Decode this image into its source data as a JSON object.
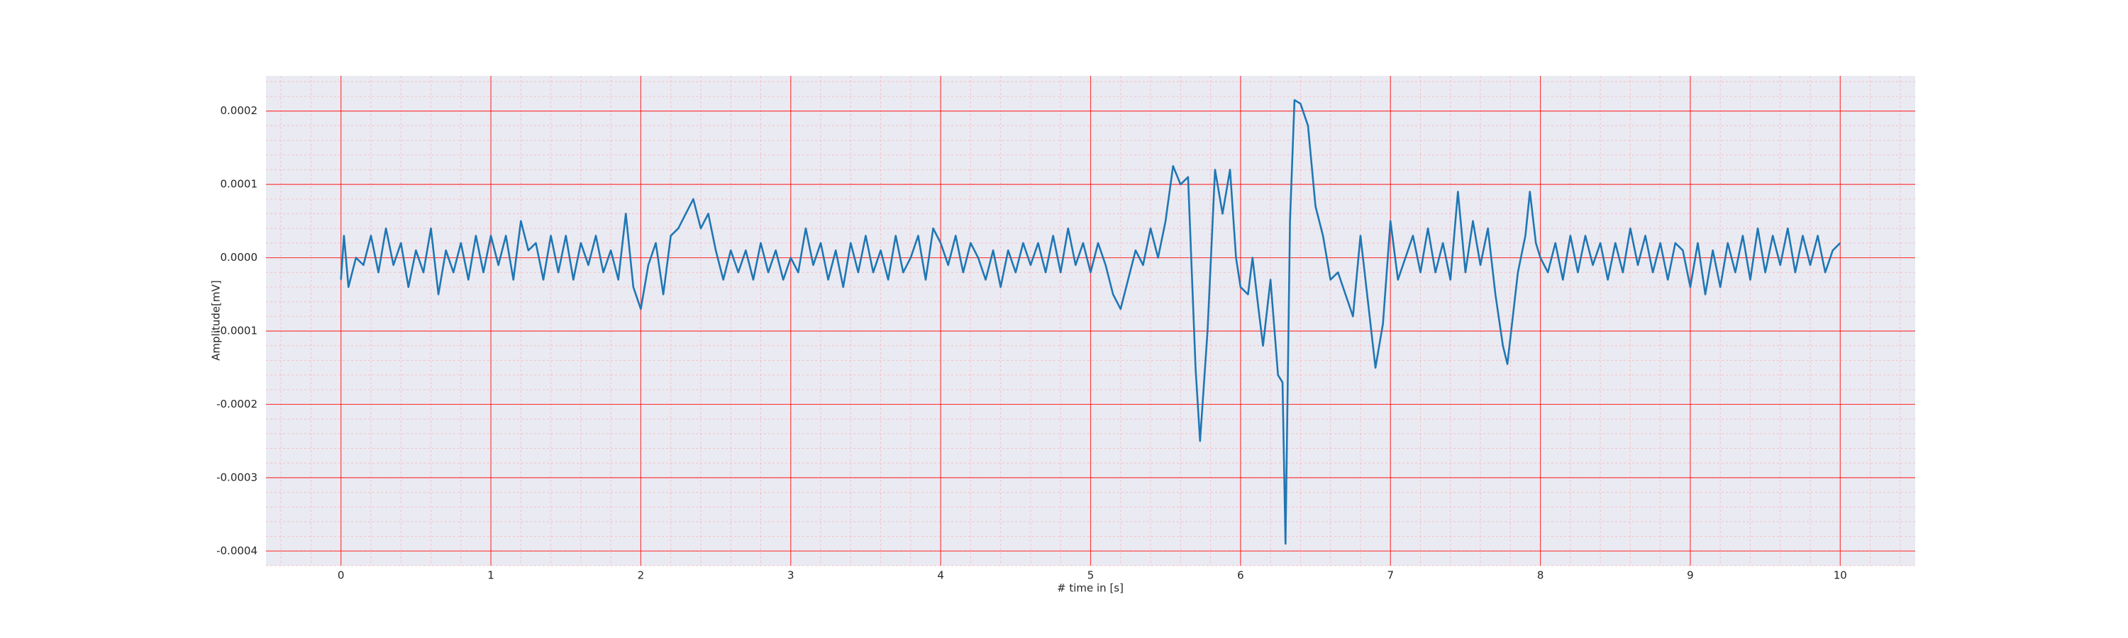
{
  "chart_data": {
    "type": "line",
    "xlabel": "# time in [s]",
    "ylabel": "Amplitude[mV]",
    "color": "#1f77b4",
    "grid": true,
    "minor_grid": {
      "xstep": 0.2,
      "ystep": 2e-05
    },
    "xlim": [
      -0.5,
      10.5
    ],
    "xticks": [
      0,
      1,
      2,
      3,
      4,
      5,
      6,
      7,
      8,
      9,
      10
    ],
    "ylim": [
      -0.00042,
      0.000248
    ],
    "yticks": [
      0.0002,
      0.0001,
      {
        "value": 0,
        "label": "0.0000"
      },
      -0.0001,
      -0.0002,
      -0.0003,
      -0.0004
    ],
    "x": [
      0,
      0.02,
      0.05,
      0.1,
      0.15,
      0.2,
      0.25,
      0.3,
      0.35,
      0.4,
      0.45,
      0.5,
      0.55,
      0.6,
      0.65,
      0.7,
      0.75,
      0.8,
      0.85,
      0.9,
      0.95,
      1.0,
      1.05,
      1.1,
      1.15,
      1.2,
      1.25,
      1.3,
      1.35,
      1.4,
      1.45,
      1.5,
      1.55,
      1.6,
      1.65,
      1.7,
      1.75,
      1.8,
      1.85,
      1.9,
      1.95,
      2.0,
      2.05,
      2.1,
      2.15,
      2.2,
      2.25,
      2.3,
      2.35,
      2.4,
      2.45,
      2.5,
      2.55,
      2.6,
      2.65,
      2.7,
      2.75,
      2.8,
      2.85,
      2.9,
      2.95,
      3.0,
      3.05,
      3.1,
      3.15,
      3.2,
      3.25,
      3.3,
      3.35,
      3.4,
      3.45,
      3.5,
      3.55,
      3.6,
      3.65,
      3.7,
      3.75,
      3.8,
      3.85,
      3.9,
      3.95,
      4.0,
      4.05,
      4.1,
      4.15,
      4.2,
      4.25,
      4.3,
      4.35,
      4.4,
      4.45,
      4.5,
      4.55,
      4.6,
      4.65,
      4.7,
      4.75,
      4.8,
      4.85,
      4.9,
      4.95,
      5.0,
      5.05,
      5.1,
      5.15,
      5.2,
      5.25,
      5.3,
      5.35,
      5.4,
      5.45,
      5.5,
      5.55,
      5.6,
      5.65,
      5.7,
      5.73,
      5.78,
      5.83,
      5.88,
      5.93,
      5.97,
      6.0,
      6.05,
      6.08,
      6.12,
      6.15,
      6.2,
      6.25,
      6.28,
      6.3,
      6.33,
      6.36,
      6.4,
      6.45,
      6.5,
      6.55,
      6.6,
      6.65,
      6.7,
      6.75,
      6.8,
      6.85,
      6.9,
      6.95,
      7.0,
      7.05,
      7.1,
      7.15,
      7.2,
      7.25,
      7.3,
      7.35,
      7.4,
      7.45,
      7.5,
      7.55,
      7.6,
      7.65,
      7.7,
      7.75,
      7.78,
      7.85,
      7.9,
      7.93,
      7.97,
      8.0,
      8.05,
      8.1,
      8.15,
      8.2,
      8.25,
      8.3,
      8.35,
      8.4,
      8.45,
      8.5,
      8.55,
      8.6,
      8.65,
      8.7,
      8.75,
      8.8,
      8.85,
      8.9,
      8.95,
      9.0,
      9.05,
      9.1,
      9.15,
      9.2,
      9.25,
      9.3,
      9.35,
      9.4,
      9.45,
      9.5,
      9.55,
      9.6,
      9.65,
      9.7,
      9.75,
      9.8,
      9.85,
      9.9,
      9.95,
      10.0
    ],
    "values": [
      -3e-05,
      3e-05,
      -4e-05,
      0.0,
      -1e-05,
      3e-05,
      -2e-05,
      4e-05,
      -1e-05,
      2e-05,
      -4e-05,
      1e-05,
      -2e-05,
      4e-05,
      -5e-05,
      1e-05,
      -2e-05,
      2e-05,
      -3e-05,
      3e-05,
      -2e-05,
      3e-05,
      -1e-05,
      3e-05,
      -3e-05,
      5e-05,
      1e-05,
      2e-05,
      -3e-05,
      3e-05,
      -2e-05,
      3e-05,
      -3e-05,
      2e-05,
      -1e-05,
      3e-05,
      -2e-05,
      1e-05,
      -3e-05,
      6e-05,
      -4e-05,
      -7e-05,
      -1e-05,
      2e-05,
      -5e-05,
      3e-05,
      4e-05,
      6e-05,
      8e-05,
      4e-05,
      6e-05,
      1e-05,
      -3e-05,
      1e-05,
      -2e-05,
      1e-05,
      -3e-05,
      2e-05,
      -2e-05,
      1e-05,
      -3e-05,
      0.0,
      -2e-05,
      4e-05,
      -1e-05,
      2e-05,
      -3e-05,
      1e-05,
      -4e-05,
      2e-05,
      -2e-05,
      3e-05,
      -2e-05,
      1e-05,
      -3e-05,
      3e-05,
      -2e-05,
      0.0,
      3e-05,
      -3e-05,
      4e-05,
      2e-05,
      -1e-05,
      3e-05,
      -2e-05,
      2e-05,
      0.0,
      -3e-05,
      1e-05,
      -4e-05,
      1e-05,
      -2e-05,
      2e-05,
      -1e-05,
      2e-05,
      -2e-05,
      3e-05,
      -2e-05,
      4e-05,
      -1e-05,
      2e-05,
      -2e-05,
      2e-05,
      -1e-05,
      -5e-05,
      -7e-05,
      -3e-05,
      1e-05,
      -1e-05,
      4e-05,
      0.0,
      5e-05,
      0.000125,
      0.0001,
      0.00011,
      -0.00015,
      -0.00025,
      -0.0001,
      0.00012,
      6e-05,
      0.00012,
      0.0,
      -4e-05,
      -5e-05,
      0.0,
      -7e-05,
      -0.00012,
      -3e-05,
      -0.00016,
      -0.00017,
      -0.00039,
      5e-05,
      0.000215,
      0.00021,
      0.00018,
      7e-05,
      3e-05,
      -3e-05,
      -2e-05,
      -5e-05,
      -8e-05,
      3e-05,
      -6e-05,
      -0.00015,
      -9e-05,
      5e-05,
      -3e-05,
      0.0,
      3e-05,
      -2e-05,
      4e-05,
      -2e-05,
      2e-05,
      -3e-05,
      9e-05,
      -2e-05,
      5e-05,
      -1e-05,
      4e-05,
      -5e-05,
      -0.00012,
      -0.000145,
      -2e-05,
      3e-05,
      9e-05,
      2e-05,
      0.0,
      -2e-05,
      2e-05,
      -3e-05,
      3e-05,
      -2e-05,
      3e-05,
      -1e-05,
      2e-05,
      -3e-05,
      2e-05,
      -2e-05,
      4e-05,
      -1e-05,
      3e-05,
      -2e-05,
      2e-05,
      -3e-05,
      2e-05,
      1e-05,
      -4e-05,
      2e-05,
      -5e-05,
      1e-05,
      -4e-05,
      2e-05,
      -2e-05,
      3e-05,
      -3e-05,
      4e-05,
      -2e-05,
      3e-05,
      -1e-05,
      4e-05,
      -2e-05,
      3e-05,
      -1e-05,
      3e-05,
      -2e-05,
      1e-05,
      2e-05
    ]
  }
}
